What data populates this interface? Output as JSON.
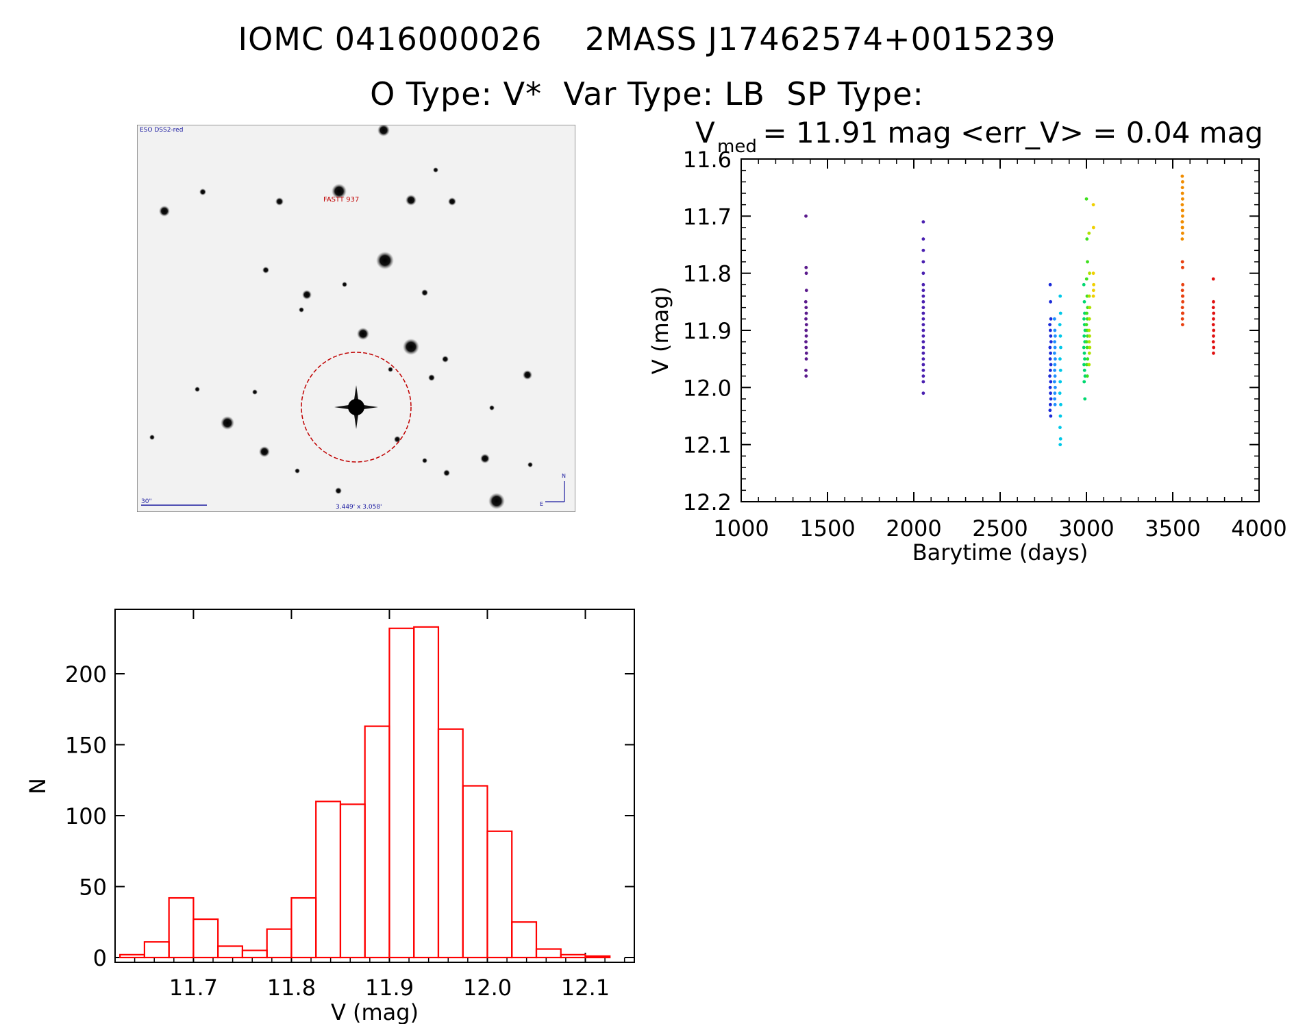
{
  "header": {
    "line1": "IOMC 0416000026    2MASS J17462574+0015239",
    "line2": "O Type: V*  Var Type: LB  SP Type:"
  },
  "finder": {
    "survey": "ESO DSS2-red",
    "target_label": "FASTT 937",
    "scale_label": "30\"",
    "fov_label": "3.449' x 3.058'",
    "north": "N",
    "east": "E"
  },
  "chart_data": [
    {
      "type": "scatter",
      "title_prefix": "V",
      "title_sub": "med",
      "title_suffix": " = 11.91 mag <err_V> = 0.04 mag",
      "xlabel": "Barytime (days)",
      "ylabel": "V (mag)",
      "xlim": [
        1000,
        4000
      ],
      "ylim": [
        12.2,
        11.6
      ],
      "y_inverted": true,
      "xticks": [
        "1000",
        "1500",
        "2000",
        "2500",
        "3000",
        "3500",
        "4000"
      ],
      "yticks": [
        "11.6",
        "11.7",
        "11.8",
        "11.9",
        "12.0",
        "12.1",
        "12.2"
      ],
      "grid": false,
      "series": [
        {
          "color": "#5a1a8c",
          "x": [
            1375,
            1376,
            1377,
            1378,
            1374,
            1376,
            1377,
            1375,
            1378,
            1376,
            1377,
            1375,
            1376,
            1378,
            1377,
            1375,
            1376
          ],
          "y": [
            11.7,
            11.79,
            11.8,
            11.83,
            11.85,
            11.86,
            11.87,
            11.88,
            11.89,
            11.9,
            11.91,
            11.92,
            11.93,
            11.94,
            11.95,
            11.97,
            11.98
          ]
        },
        {
          "color": "#4a20b0",
          "x": [
            2055,
            2055,
            2055,
            2055,
            2055,
            2055,
            2055,
            2055,
            2055,
            2055,
            2055,
            2055,
            2055,
            2055,
            2055,
            2055,
            2055,
            2055,
            2055,
            2055,
            2055,
            2055,
            2055,
            2055
          ],
          "y": [
            11.71,
            11.74,
            11.76,
            11.78,
            11.8,
            11.82,
            11.83,
            11.84,
            11.85,
            11.86,
            11.87,
            11.88,
            11.89,
            11.9,
            11.91,
            11.92,
            11.93,
            11.94,
            11.95,
            11.96,
            11.97,
            11.98,
            11.99,
            12.01
          ]
        },
        {
          "color": "#1a2ad8",
          "x": [
            2790,
            2792,
            2794,
            2788,
            2791,
            2793,
            2795,
            2789,
            2792,
            2790,
            2794,
            2791,
            2788,
            2793,
            2790,
            2792,
            2794,
            2791,
            2789,
            2793
          ],
          "y": [
            11.82,
            11.85,
            11.88,
            11.89,
            11.9,
            11.91,
            11.92,
            11.93,
            11.94,
            11.95,
            11.96,
            11.97,
            11.98,
            11.99,
            12.0,
            12.01,
            12.02,
            12.03,
            12.04,
            12.05
          ]
        },
        {
          "color": "#1e90ff",
          "x": [
            2815,
            2817,
            2819,
            2816,
            2818,
            2815,
            2819,
            2817,
            2816,
            2818,
            2815,
            2819,
            2817,
            2816,
            2818
          ],
          "y": [
            11.88,
            11.9,
            11.91,
            11.92,
            11.93,
            11.94,
            11.95,
            11.96,
            11.97,
            11.98,
            11.99,
            12.0,
            12.01,
            12.02,
            12.03
          ]
        },
        {
          "color": "#00c8e8",
          "x": [
            2848,
            2850,
            2846,
            2849,
            2851,
            2847,
            2850,
            2848,
            2846,
            2851,
            2849,
            2847,
            2850,
            2848
          ],
          "y": [
            11.84,
            11.87,
            11.89,
            11.91,
            11.93,
            11.95,
            11.97,
            11.99,
            12.01,
            12.03,
            12.05,
            12.07,
            12.09,
            12.1
          ]
        },
        {
          "color": "#00d870",
          "x": [
            2985,
            2988,
            2990,
            2986,
            2989,
            2992,
            2987,
            2991,
            2985,
            2988,
            2990,
            2986,
            2989,
            2992,
            2987,
            2991
          ],
          "y": [
            11.82,
            11.85,
            11.87,
            11.88,
            11.89,
            11.9,
            11.91,
            11.92,
            11.93,
            11.94,
            11.95,
            11.96,
            11.97,
            11.98,
            11.99,
            12.02
          ]
        },
        {
          "color": "#40e020",
          "x": [
            3000,
            3003,
            3006,
            3001,
            3004,
            3007,
            3002,
            3005,
            3000,
            3003,
            3006,
            3001,
            3004,
            3007,
            3002,
            3005
          ],
          "y": [
            11.67,
            11.74,
            11.78,
            11.81,
            11.84,
            11.86,
            11.87,
            11.88,
            11.89,
            11.9,
            11.91,
            11.92,
            11.93,
            11.95,
            11.96,
            11.98
          ]
        },
        {
          "color": "#b0e000",
          "x": [
            3015,
            3018,
            3016,
            3019,
            3017,
            3015,
            3018,
            3016,
            3019,
            3017,
            3015
          ],
          "y": [
            11.73,
            11.8,
            11.84,
            11.86,
            11.88,
            11.9,
            11.91,
            11.92,
            11.93,
            11.94,
            11.96
          ]
        },
        {
          "color": "#f0d000",
          "x": [
            3040,
            3041,
            3040,
            3042,
            3041,
            3040
          ],
          "y": [
            11.68,
            11.72,
            11.8,
            11.82,
            11.83,
            11.84
          ]
        },
        {
          "color": "#f08c00",
          "x": [
            3555,
            3556,
            3557,
            3555,
            3556,
            3557,
            3555,
            3556,
            3557,
            3555,
            3556,
            3557,
            3555,
            3556,
            3557
          ],
          "y": [
            11.63,
            11.65,
            11.67,
            11.68,
            11.69,
            11.7,
            11.71,
            11.72,
            11.73,
            11.74,
            11.66,
            11.69,
            11.71,
            11.72,
            11.64
          ]
        },
        {
          "color": "#e84010",
          "x": [
            3556,
            3557,
            3558,
            3556,
            3557,
            3558,
            3556,
            3557,
            3558,
            3556,
            3557,
            3558
          ],
          "y": [
            11.78,
            11.79,
            11.82,
            11.83,
            11.84,
            11.85,
            11.86,
            11.87,
            11.87,
            11.88,
            11.89,
            11.84
          ]
        },
        {
          "color": "#e01010",
          "x": [
            3735,
            3736,
            3735,
            3737,
            3736,
            3735,
            3737,
            3736,
            3735,
            3737,
            3736
          ],
          "y": [
            11.81,
            11.85,
            11.86,
            11.87,
            11.88,
            11.89,
            11.9,
            11.91,
            11.92,
            11.93,
            11.94
          ]
        }
      ]
    },
    {
      "type": "bar",
      "xlabel": "V (mag)",
      "ylabel": "N",
      "xlim": [
        11.62,
        12.15
      ],
      "ylim": [
        0,
        230
      ],
      "xticks": [
        "11.7",
        "11.8",
        "11.9",
        "12.0",
        "12.1"
      ],
      "yticks": [
        "0",
        "50",
        "100",
        "150",
        "200"
      ],
      "bar_color": "#ff0000",
      "bins": [
        11.6375,
        11.6625,
        11.6875,
        11.7125,
        11.7375,
        11.7625,
        11.7875,
        11.8125,
        11.8375,
        11.8625,
        11.8875,
        11.9125,
        11.9375,
        11.9625,
        11.9875,
        12.0125,
        12.0375,
        12.0625,
        12.0875,
        12.1125
      ],
      "bin_width": 0.025,
      "values": [
        2,
        11,
        42,
        27,
        8,
        5,
        20,
        42,
        110,
        108,
        163,
        232,
        233,
        161,
        121,
        89,
        25,
        6,
        2,
        1
      ]
    }
  ]
}
